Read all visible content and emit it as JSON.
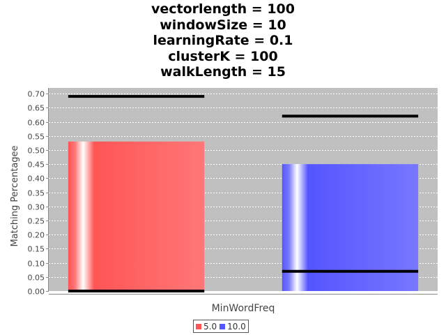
{
  "chart_data": {
    "type": "bar",
    "title_lines": [
      "vectorlength = 100",
      "windowSize = 10",
      "learningRate = 0.1",
      "clusterK = 100",
      "walkLength = 15"
    ],
    "categories": [
      "MinWordFreq"
    ],
    "series": [
      {
        "name": "5.0",
        "values": [
          0.53
        ],
        "interval": [
          0.0,
          0.69
        ],
        "color": "#ff5555"
      },
      {
        "name": "10.0",
        "values": [
          0.45
        ],
        "interval": [
          0.07,
          0.62
        ],
        "color": "#5555ff"
      }
    ],
    "xlabel": "MinWordFreq",
    "ylabel": "Matching Percentagee",
    "ylim": [
      0.0,
      0.72
    ],
    "yticks": [
      "0.00",
      "0.05",
      "0.10",
      "0.15",
      "0.20",
      "0.25",
      "0.30",
      "0.35",
      "0.40",
      "0.45",
      "0.50",
      "0.55",
      "0.60",
      "0.65",
      "0.70"
    ],
    "grid": true,
    "plot_background": "#c0c0c0",
    "legend_position": "bottom"
  }
}
